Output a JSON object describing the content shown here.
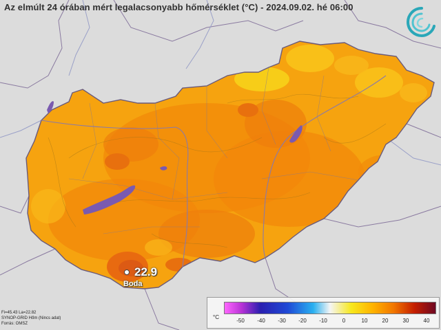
{
  "title": "Az elmúlt 24 órában mért legalacsonyabb hőmérséklet (°C) - 2024.09.02. hé 06:00",
  "logo_icon": "met-service-swirl-icon",
  "station": {
    "value": "22.9",
    "name": "Boda"
  },
  "footer": {
    "line1": "Fi=45.43 La=22.82",
    "line2": "SYNOP-GRID Hőm (Nincs adat)",
    "line3": "Forrás: OMSZ"
  },
  "legend": {
    "unit": "°C",
    "ticks": [
      "-50",
      "-40",
      "-30",
      "-20",
      "-10",
      "0",
      "10",
      "20",
      "30",
      "40"
    ],
    "colors": [
      "#ff66ff",
      "#b833d6",
      "#5a1fb8",
      "#1a1aa0",
      "#1f5ad6",
      "#2ab0f0",
      "#f5f5f5",
      "#f7e81e",
      "#ffb400",
      "#f58200",
      "#e04a00",
      "#b51900",
      "#8c0a1e",
      "#6e0822"
    ]
  },
  "colors": {
    "background": "#dcdcdc",
    "country_fill": "#f6a30f",
    "warm_zone": "#f28a0a",
    "hot_zone": "#e86a10",
    "cool_zone": "#f7d21a",
    "lake": "#7a5ab0",
    "border": "#7a6a8a",
    "river": "#8a8aaa"
  }
}
